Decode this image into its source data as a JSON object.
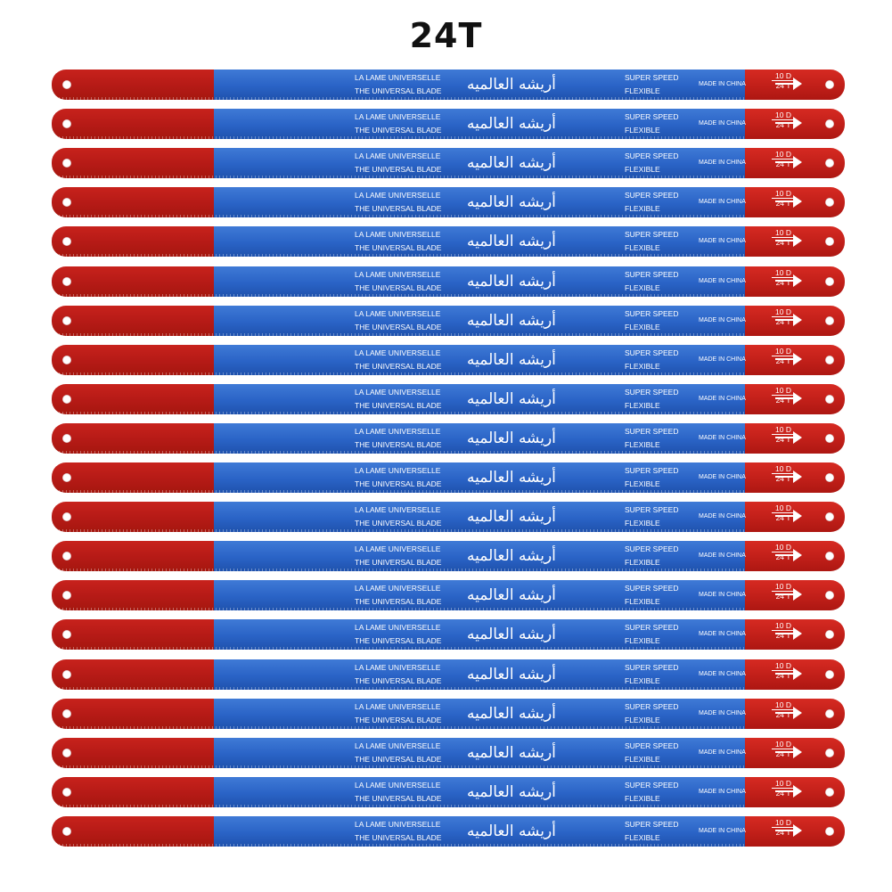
{
  "title": "24T",
  "blade_count": 20,
  "blade": {
    "line1": "LA LAME UNIVERSELLE",
    "line2": "THE UNIVERSAL BLADE",
    "arabic": "أريشه العالميه",
    "line3": "SUPER SPEED",
    "line4": "FLEXIBLE",
    "origin": "MADE IN CHINA",
    "tooth_top": "10 D",
    "tooth_bottom": "24 T"
  },
  "colors": {
    "blade_blue": "#2a63c6",
    "blade_red": "#c11f19",
    "background": "#ffffff"
  }
}
